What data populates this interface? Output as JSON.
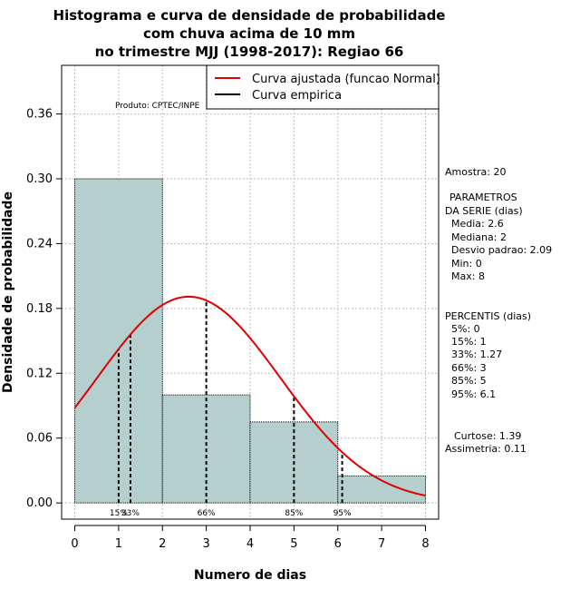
{
  "chart_data": {
    "type": "bar",
    "title_lines": [
      "Histograma e curva de densidade de probabilidade",
      "com chuva acima de 10 mm",
      "no trimestre MJJ (1998-2017): Regiao 66"
    ],
    "xlabel": "Numero de dias",
    "ylabel": "Densidade de probabilidade",
    "xlim": [
      -0.3,
      8.3
    ],
    "ylim": [
      -0.015,
      0.405
    ],
    "xticks": [
      0,
      1,
      2,
      3,
      4,
      5,
      6,
      7,
      8
    ],
    "xtick_labels": [
      "0",
      "1",
      "2",
      "3",
      "4",
      "5",
      "6",
      "7",
      "8"
    ],
    "yticks": [
      0.0,
      0.06,
      0.12,
      0.18,
      0.24,
      0.3,
      0.36
    ],
    "ytick_labels": [
      "0.00",
      "0.06",
      "0.12",
      "0.18",
      "0.24",
      "0.30",
      "0.36"
    ],
    "histogram": [
      {
        "x0": 0,
        "x1": 2,
        "density": 0.3
      },
      {
        "x0": 2,
        "x1": 4,
        "density": 0.1
      },
      {
        "x0": 4,
        "x1": 6,
        "density": 0.075
      },
      {
        "x0": 6,
        "x1": 8,
        "density": 0.025
      }
    ],
    "normal_fit": {
      "mean": 2.6,
      "sd": 2.09,
      "from": 0,
      "to": 8
    },
    "percentile_markers": [
      {
        "label": "15%",
        "x": 1.0
      },
      {
        "label": "33%",
        "x": 1.27
      },
      {
        "label": "66%",
        "x": 3.0
      },
      {
        "label": "85%",
        "x": 5.0
      },
      {
        "label": "95%",
        "x": 6.1
      }
    ],
    "legend": [
      {
        "label": "Curva ajustada (funcao Normal)",
        "color": "#e00000"
      },
      {
        "label": "Curva empirica",
        "color": "#000000"
      }
    ],
    "source_note": "Produto: CPTEC/INPE",
    "side_text": [
      "Amostra: 20",
      "PARAMETROS",
      "DA SERIE (dias)",
      "Media: 2.6",
      "Mediana: 2",
      "Desvio padrao: 2.09",
      "Min: 0",
      "Max: 8",
      "PERCENTIS (dias)",
      "5%: 0",
      "15%: 1",
      "33%: 1.27",
      "66%: 3",
      "85%: 5",
      "95%: 6.1",
      "Curtose: 1.39",
      "Assimetria: 0.11"
    ],
    "colors": {
      "bar_fill": "#b5cfcf",
      "grid": "#bdbdbd",
      "curve": "#e00000",
      "marker": "#000000"
    }
  }
}
